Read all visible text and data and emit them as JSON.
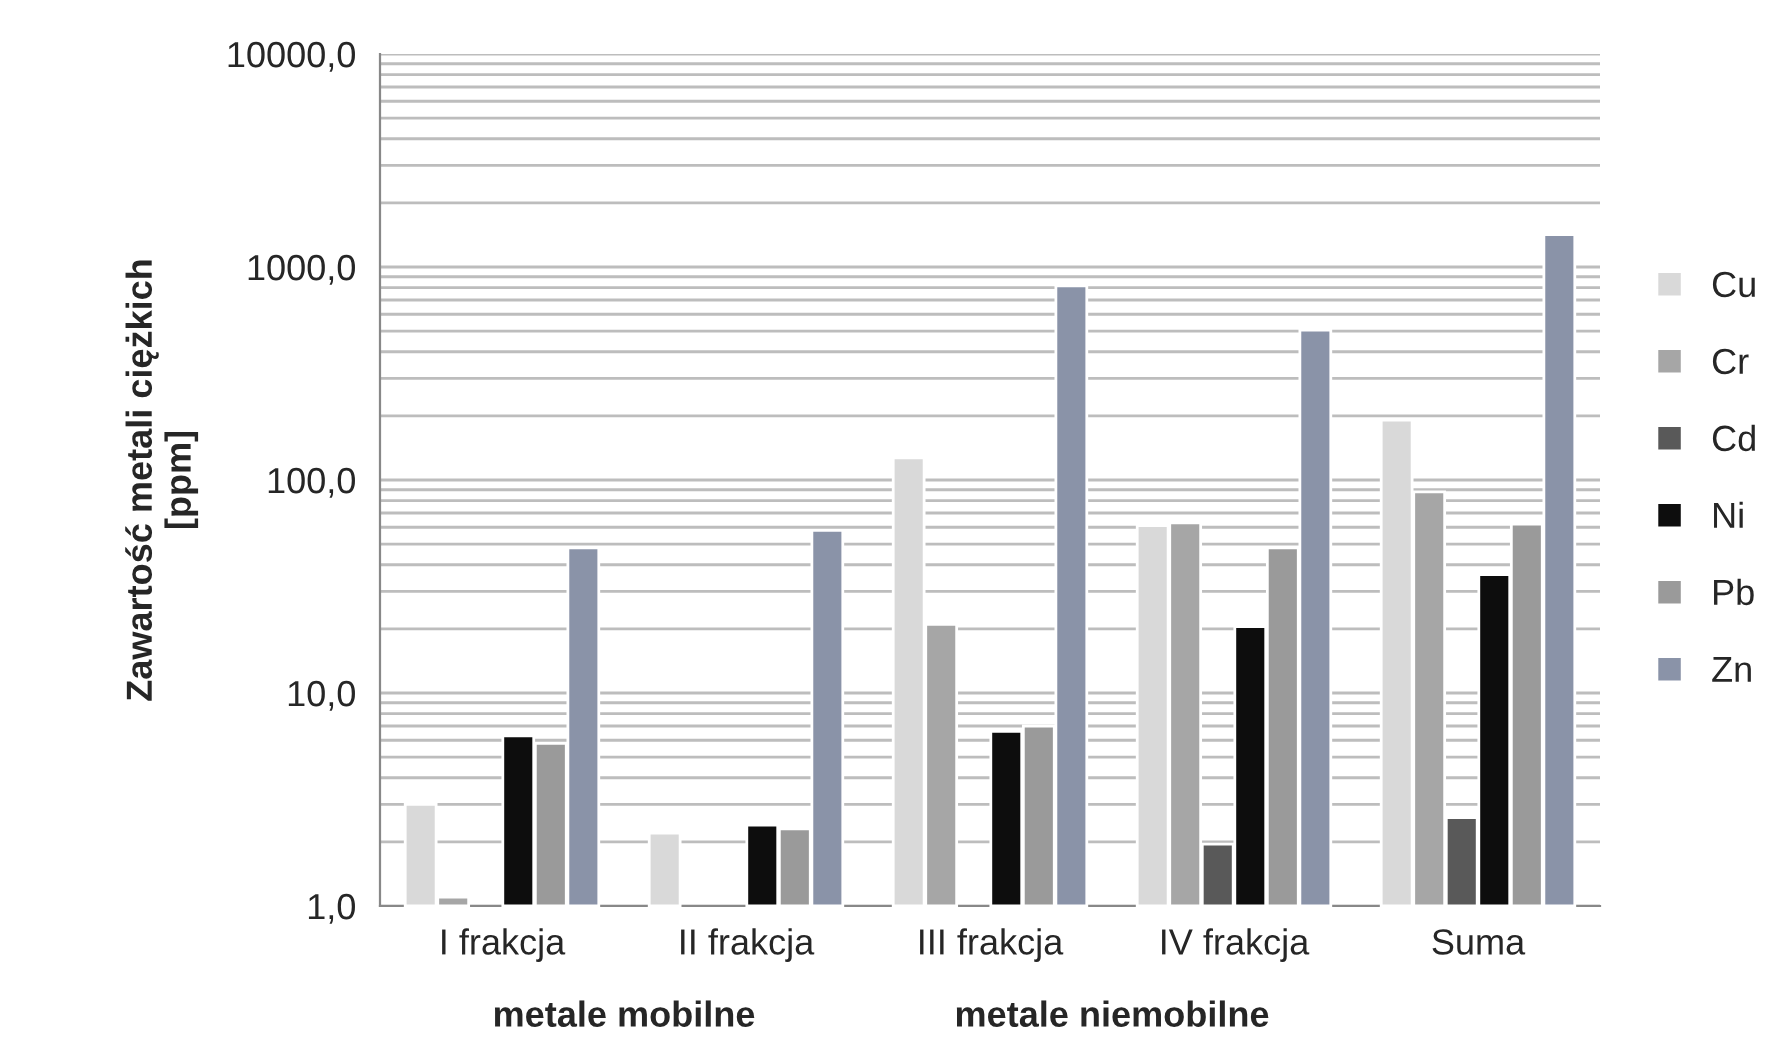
{
  "chart_data": {
    "type": "bar",
    "ylabel": "Zawartość metali ciężkich\n[ppm]",
    "categories": [
      "I frakcja",
      "II frakcja",
      "III frakcja",
      "IV frakcja",
      "Suma"
    ],
    "series": [
      {
        "name": "Cu",
        "color": "#d9d9d9",
        "values": [
          3.0,
          2.2,
          127,
          61,
          191
        ]
      },
      {
        "name": "Cr",
        "color": "#a6a6a6",
        "values": [
          1.1,
          null,
          21,
          63,
          88
        ]
      },
      {
        "name": "Cd",
        "color": "#595959",
        "values": [
          null,
          null,
          null,
          1.95,
          2.6
        ]
      },
      {
        "name": "Ni",
        "color": "#0d0d0d",
        "values": [
          6.3,
          2.4,
          6.6,
          20.5,
          36
        ]
      },
      {
        "name": "Pb",
        "color": "#9a9a9a",
        "values": [
          5.8,
          2.3,
          7.0,
          48,
          62
        ]
      },
      {
        "name": "Zn",
        "color": "#8a93a8",
        "values": [
          48,
          58,
          815,
          505,
          1420
        ]
      }
    ],
    "log": "y",
    "ylim": [
      1,
      10000
    ],
    "yticks": [
      {
        "value": 1,
        "label": "1,0"
      },
      {
        "value": 10,
        "label": "10,0"
      },
      {
        "value": 100,
        "label": "100,0"
      },
      {
        "value": 1000,
        "label": "1000,0"
      },
      {
        "value": 10000,
        "label": "10000,0"
      }
    ],
    "grid": "y",
    "legend": "right",
    "annotations": [
      "metale mobilne",
      "metale niemobilne"
    ]
  }
}
